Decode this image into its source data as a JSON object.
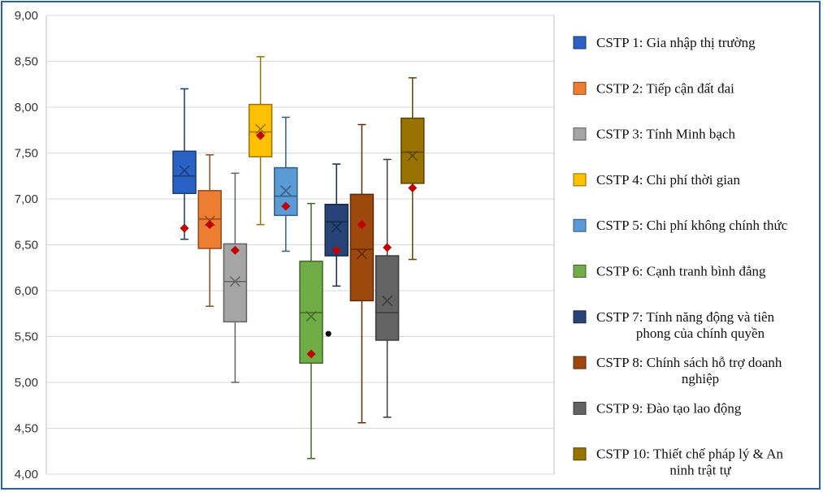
{
  "chart_data": {
    "type": "boxplot",
    "title": "",
    "xlabel": "",
    "ylabel": "",
    "ylim": [
      4.0,
      9.0
    ],
    "yticks": [
      "4,00",
      "4,50",
      "5,00",
      "5,50",
      "6,00",
      "6,50",
      "7,00",
      "7,50",
      "8,00",
      "8,50",
      "9,00"
    ],
    "grid": true,
    "legend_position": "right",
    "series": [
      {
        "name": "CSTP 1: Gia nhập thị trường",
        "color": "#2a62c4",
        "min": 6.56,
        "q1": 7.06,
        "median": 7.25,
        "q3": 7.52,
        "max": 8.2,
        "mean": 7.31,
        "marker": 6.68,
        "outliers": []
      },
      {
        "name": "CSTP 2: Tiếp cận đất đai",
        "color": "#ed7d31",
        "min": 5.83,
        "q1": 6.46,
        "median": 6.78,
        "q3": 7.09,
        "max": 7.48,
        "mean": 6.76,
        "marker": 6.72,
        "outliers": []
      },
      {
        "name": "CSTP 3: Tính Minh bạch",
        "color": "#a5a5a5",
        "min": 5.0,
        "q1": 5.66,
        "median": 6.1,
        "q3": 6.51,
        "max": 7.28,
        "mean": 6.1,
        "marker": 6.44,
        "outliers": []
      },
      {
        "name": "CSTP 4: Chi phí thời gian",
        "color": "#ffc000",
        "min": 6.72,
        "q1": 7.46,
        "median": 7.73,
        "q3": 8.03,
        "max": 8.55,
        "mean": 7.76,
        "marker": 7.69,
        "outliers": []
      },
      {
        "name": "CSTP 5: Chi phí không chính thức",
        "color": "#5b9bd5",
        "min": 6.43,
        "q1": 6.82,
        "median": 7.03,
        "q3": 7.34,
        "max": 7.89,
        "mean": 7.09,
        "marker": 6.92,
        "outliers": []
      },
      {
        "name": "CSTP 6: Cạnh tranh bình đẳng",
        "color": "#70ad47",
        "min": 4.17,
        "q1": 5.21,
        "median": 5.76,
        "q3": 6.32,
        "max": 6.95,
        "mean": 5.72,
        "marker": 5.31,
        "outliers": []
      },
      {
        "name": "CSTP 7: Tính năng động và tiên phong của chính quyền",
        "color": "#264478",
        "min": 6.05,
        "q1": 6.38,
        "median": 6.75,
        "q3": 6.94,
        "max": 7.38,
        "mean": 6.69,
        "marker": 6.44,
        "outliers": [
          5.53
        ]
      },
      {
        "name": "CSTP 8: Chính sách hỗ trợ doanh nghiệp",
        "color": "#9e480e",
        "min": 4.56,
        "q1": 5.89,
        "median": 6.45,
        "q3": 7.05,
        "max": 7.81,
        "mean": 6.4,
        "marker": 6.72,
        "outliers": []
      },
      {
        "name": "CSTP 9: Đào tạo lao động",
        "color": "#636363",
        "min": 4.62,
        "q1": 5.46,
        "median": 5.76,
        "q3": 6.38,
        "max": 7.43,
        "mean": 5.89,
        "marker": 6.47,
        "outliers": []
      },
      {
        "name": "CSTP 10: Thiết chế pháp lý & An ninh trật tự",
        "color": "#997300",
        "min": 6.34,
        "q1": 7.17,
        "median": 7.51,
        "q3": 7.88,
        "max": 8.32,
        "mean": 7.47,
        "marker": 7.12,
        "outliers": []
      }
    ]
  },
  "legend": {
    "items": [
      {
        "lines": [
          "CSTP 1: Gia nhập thị trường"
        ],
        "color": "#2a62c4"
      },
      {
        "lines": [
          "CSTP 2: Tiếp cận đất đai"
        ],
        "color": "#ed7d31"
      },
      {
        "lines": [
          "CSTP 3: Tính Minh bạch"
        ],
        "color": "#a5a5a5"
      },
      {
        "lines": [
          "CSTP 4: Chi phí thời gian"
        ],
        "color": "#ffc000"
      },
      {
        "lines": [
          "CSTP 5: Chi phí không chính thức"
        ],
        "color": "#5b9bd5"
      },
      {
        "lines": [
          "CSTP 6: Cạnh tranh bình đẳng"
        ],
        "color": "#70ad47"
      },
      {
        "lines": [
          "CSTP 7: Tính năng động và tiên",
          "phong của chính quyền"
        ],
        "color": "#264478"
      },
      {
        "lines": [
          "CSTP 8: Chính sách hỗ trợ doanh",
          "nghiệp"
        ],
        "color": "#9e480e"
      },
      {
        "lines": [
          "CSTP 9: Đào tạo lao động"
        ],
        "color": "#636363"
      },
      {
        "lines": [
          "CSTP 10: Thiết chế pháp lý & An",
          "ninh trật tự"
        ],
        "color": "#997300"
      }
    ]
  },
  "colors": {
    "frame": "#2e5fa7",
    "grid": "#d9d9d9",
    "marker": "#c00000",
    "outlier": "#000000"
  }
}
